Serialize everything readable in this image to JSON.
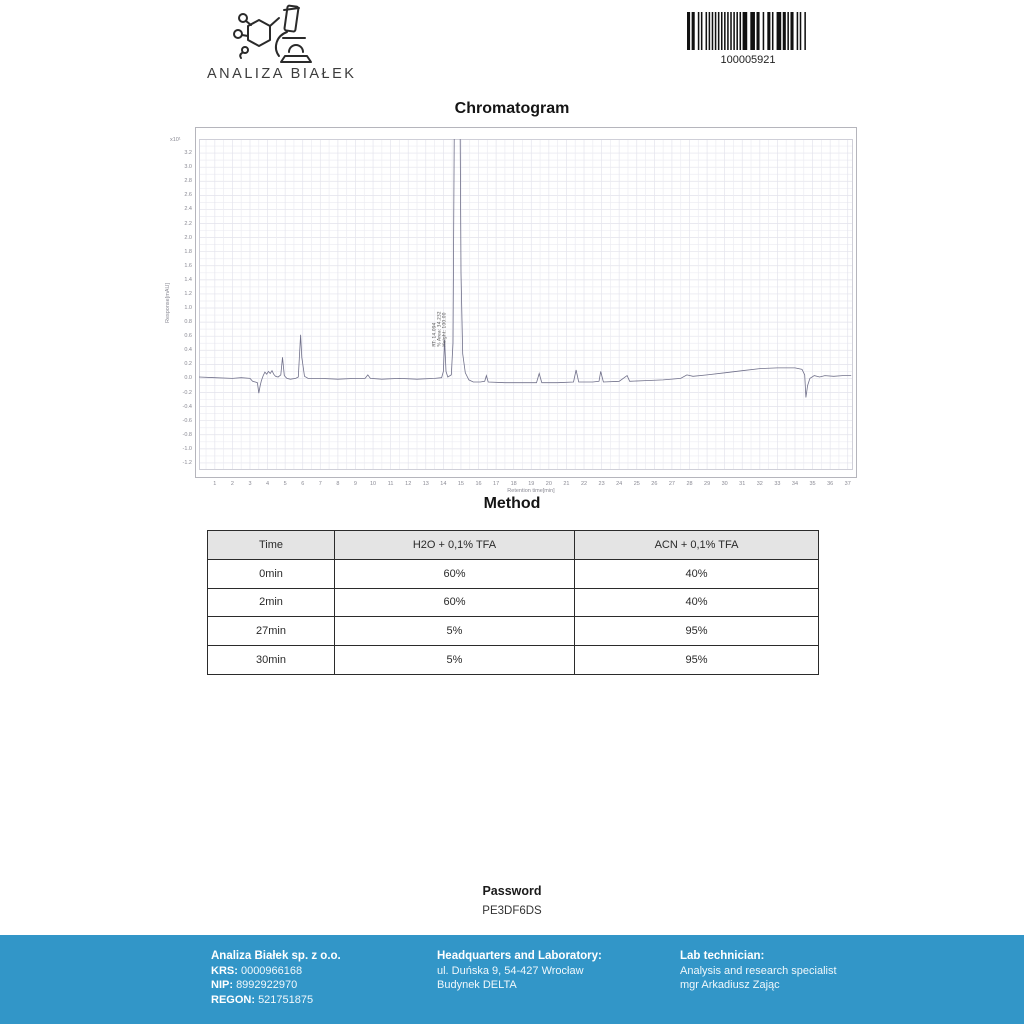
{
  "header": {
    "logo_text": "ANALIZA BIAŁEK",
    "barcode_number": "100005921"
  },
  "chromatogram_title": "Chromatogram",
  "chart_data": {
    "type": "line",
    "title": "Chromatogram",
    "xlabel": "Retention time[min]",
    "ylabel": "Response[mAU]",
    "y_unit_label": "x10¹",
    "xlim": [
      0.1,
      37.3
    ],
    "ylim": [
      -1.3,
      3.4
    ],
    "grid": true,
    "line_color": "#70708a",
    "x_ticks": [
      1,
      2,
      3,
      4,
      5,
      6,
      7,
      8,
      9,
      10,
      11,
      12,
      13,
      14,
      15,
      16,
      17,
      18,
      19,
      20,
      21,
      22,
      23,
      24,
      25,
      26,
      27,
      28,
      29,
      30,
      31,
      32,
      33,
      34,
      35,
      36,
      37
    ],
    "y_ticks": [
      3.2,
      3.0,
      2.8,
      2.6,
      2.4,
      2.2,
      2.0,
      1.8,
      1.6,
      1.4,
      1.2,
      1.0,
      0.8,
      0.6,
      0.4,
      0.2,
      0.0,
      -0.2,
      -0.4,
      -0.6,
      -0.8,
      -1.0,
      -1.2
    ],
    "series": [
      {
        "name": "signal",
        "points": [
          [
            0.1,
            0.02
          ],
          [
            1,
            0.01
          ],
          [
            2,
            0.0
          ],
          [
            2.5,
            0.01
          ],
          [
            3.0,
            0.0
          ],
          [
            3.15,
            -0.04
          ],
          [
            3.3,
            -0.05
          ],
          [
            3.42,
            -0.06
          ],
          [
            3.5,
            -0.21
          ],
          [
            3.58,
            -0.1
          ],
          [
            3.65,
            -0.03
          ],
          [
            3.75,
            0.04
          ],
          [
            3.85,
            0.09
          ],
          [
            3.95,
            0.06
          ],
          [
            4.05,
            0.1
          ],
          [
            4.15,
            0.07
          ],
          [
            4.25,
            0.11
          ],
          [
            4.35,
            0.06
          ],
          [
            4.45,
            0.03
          ],
          [
            4.6,
            0.02
          ],
          [
            4.75,
            0.05
          ],
          [
            4.85,
            0.3
          ],
          [
            4.95,
            0.04
          ],
          [
            5.1,
            0.0
          ],
          [
            5.3,
            -0.01
          ],
          [
            5.6,
            0.0
          ],
          [
            5.75,
            0.02
          ],
          [
            5.88,
            0.62
          ],
          [
            5.95,
            0.3
          ],
          [
            6.1,
            0.03
          ],
          [
            6.3,
            0.0
          ],
          [
            7,
            0.0
          ],
          [
            8,
            -0.01
          ],
          [
            9,
            0.0
          ],
          [
            9.55,
            0.0
          ],
          [
            9.7,
            0.05
          ],
          [
            9.85,
            0.0
          ],
          [
            10.5,
            -0.01
          ],
          [
            11.5,
            0.0
          ],
          [
            12.5,
            -0.01
          ],
          [
            13.5,
            0.0
          ],
          [
            13.9,
            0.01
          ],
          [
            14.0,
            0.1
          ],
          [
            14.07,
            0.55
          ],
          [
            14.15,
            0.1
          ],
          [
            14.25,
            0.02
          ],
          [
            14.45,
            0.05
          ],
          [
            14.55,
            0.5
          ],
          [
            14.62,
            3.6
          ],
          [
            14.95,
            3.6
          ],
          [
            15.0,
            1.5
          ],
          [
            15.1,
            0.35
          ],
          [
            15.25,
            0.08
          ],
          [
            15.45,
            -0.02
          ],
          [
            15.7,
            -0.05
          ],
          [
            16.1,
            -0.05
          ],
          [
            16.35,
            -0.04
          ],
          [
            16.45,
            0.04
          ],
          [
            16.55,
            -0.05
          ],
          [
            17.5,
            -0.06
          ],
          [
            18.5,
            -0.06
          ],
          [
            19.3,
            -0.06
          ],
          [
            19.45,
            0.07
          ],
          [
            19.6,
            -0.06
          ],
          [
            20.5,
            -0.06
          ],
          [
            21.4,
            -0.05
          ],
          [
            21.55,
            0.12
          ],
          [
            21.7,
            -0.05
          ],
          [
            22.5,
            -0.05
          ],
          [
            22.85,
            -0.04
          ],
          [
            22.95,
            0.1
          ],
          [
            23.1,
            -0.05
          ],
          [
            24.0,
            -0.04
          ],
          [
            24.45,
            0.04
          ],
          [
            24.6,
            -0.04
          ],
          [
            25.5,
            -0.03
          ],
          [
            26.5,
            -0.02
          ],
          [
            27.5,
            0.0
          ],
          [
            27.85,
            0.05
          ],
          [
            28.2,
            0.03
          ],
          [
            29,
            0.05
          ],
          [
            30,
            0.08
          ],
          [
            31,
            0.11
          ],
          [
            32,
            0.14
          ],
          [
            33,
            0.15
          ],
          [
            34,
            0.15
          ],
          [
            34.4,
            0.13
          ],
          [
            34.55,
            0.05
          ],
          [
            34.62,
            -0.27
          ],
          [
            34.72,
            -0.1
          ],
          [
            34.85,
            0.0
          ],
          [
            35.1,
            0.04
          ],
          [
            35.4,
            0.02
          ],
          [
            35.7,
            0.04
          ],
          [
            36.2,
            0.03
          ],
          [
            36.7,
            0.04
          ],
          [
            37.2,
            0.04
          ]
        ]
      }
    ],
    "annotations": [
      {
        "x": 14.07,
        "lines": [
          "RT: 14.094",
          "% Area: 34.232",
          "Height: 100.00"
        ]
      }
    ],
    "notes": "main peak near RT 14.8 exceeds top of y-axis (clipped)"
  },
  "method": {
    "title": "Method",
    "table": {
      "headers": [
        "Time",
        "H2O + 0,1% TFA",
        "ACN + 0,1% TFA"
      ],
      "rows": [
        [
          "0min",
          "60%",
          "40%"
        ],
        [
          "2min",
          "60%",
          "40%"
        ],
        [
          "27min",
          "5%",
          "95%"
        ],
        [
          "30min",
          "5%",
          "95%"
        ]
      ]
    }
  },
  "password": {
    "label": "Password",
    "value": "PE3DF6DS"
  },
  "footer": {
    "bg_color": "#3296c8",
    "company": {
      "name": "Analiza Białek sp. z o.o.",
      "krs_label": "KRS:",
      "krs_value": "0000966168",
      "nip_label": "NIP:",
      "nip_value": "8992922970",
      "regon_label": "REGON:",
      "regon_value": "521751875"
    },
    "headquarters": {
      "title": "Headquarters and Laboratory:",
      "line1": "ul. Duńska 9, 54-427 Wrocław",
      "line2": "Budynek DELTA"
    },
    "technician": {
      "title": "Lab technician:",
      "line1": "Analysis and research specialist",
      "line2": "mgr Arkadiusz Zając"
    }
  }
}
